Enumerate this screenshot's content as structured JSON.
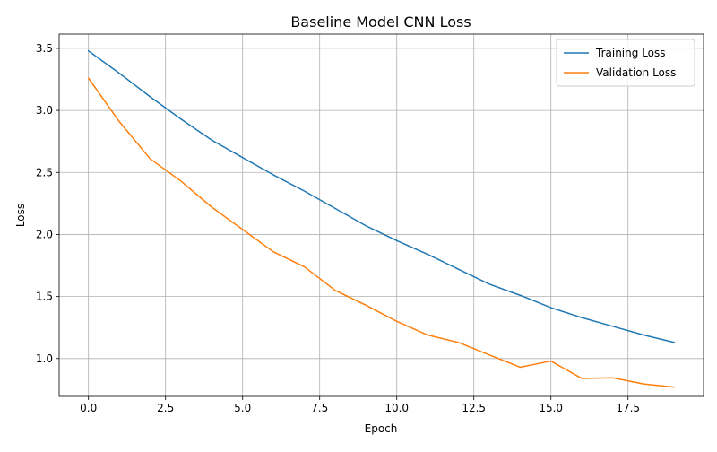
{
  "chart_data": {
    "type": "line",
    "title": "Baseline Model CNN Loss",
    "xlabel": "Epoch",
    "ylabel": "Loss",
    "xlim": [
      -0.95,
      19.95
    ],
    "ylim": [
      0.695,
      3.615
    ],
    "x_ticks": [
      0.0,
      2.5,
      5.0,
      7.5,
      10.0,
      12.5,
      15.0,
      17.5
    ],
    "x_tick_labels": [
      "0.0",
      "2.5",
      "5.0",
      "7.5",
      "10.0",
      "12.5",
      "15.0",
      "17.5"
    ],
    "y_ticks": [
      1.0,
      1.5,
      2.0,
      2.5,
      3.0,
      3.5
    ],
    "y_tick_labels": [
      "1.0",
      "1.5",
      "2.0",
      "2.5",
      "3.0",
      "3.5"
    ],
    "grid": true,
    "legend_position": "upper right",
    "x": [
      0,
      1,
      2,
      3,
      4,
      5,
      6,
      7,
      8,
      9,
      10,
      11,
      12,
      13,
      14,
      15,
      16,
      17,
      18,
      19
    ],
    "series": [
      {
        "name": "Training Loss",
        "color": "#1f77b4",
        "values": [
          3.48,
          3.3,
          3.11,
          2.93,
          2.76,
          2.62,
          2.48,
          2.35,
          2.21,
          2.07,
          1.95,
          1.84,
          1.72,
          1.6,
          1.51,
          1.41,
          1.33,
          1.26,
          1.19,
          1.13
        ]
      },
      {
        "name": "Validation Loss",
        "color": "#ff7f0e",
        "values": [
          3.26,
          2.91,
          2.61,
          2.43,
          2.22,
          2.04,
          1.86,
          1.74,
          1.55,
          1.43,
          1.3,
          1.19,
          1.13,
          1.03,
          0.93,
          0.98,
          0.84,
          0.845,
          0.795,
          0.77
        ]
      }
    ]
  }
}
